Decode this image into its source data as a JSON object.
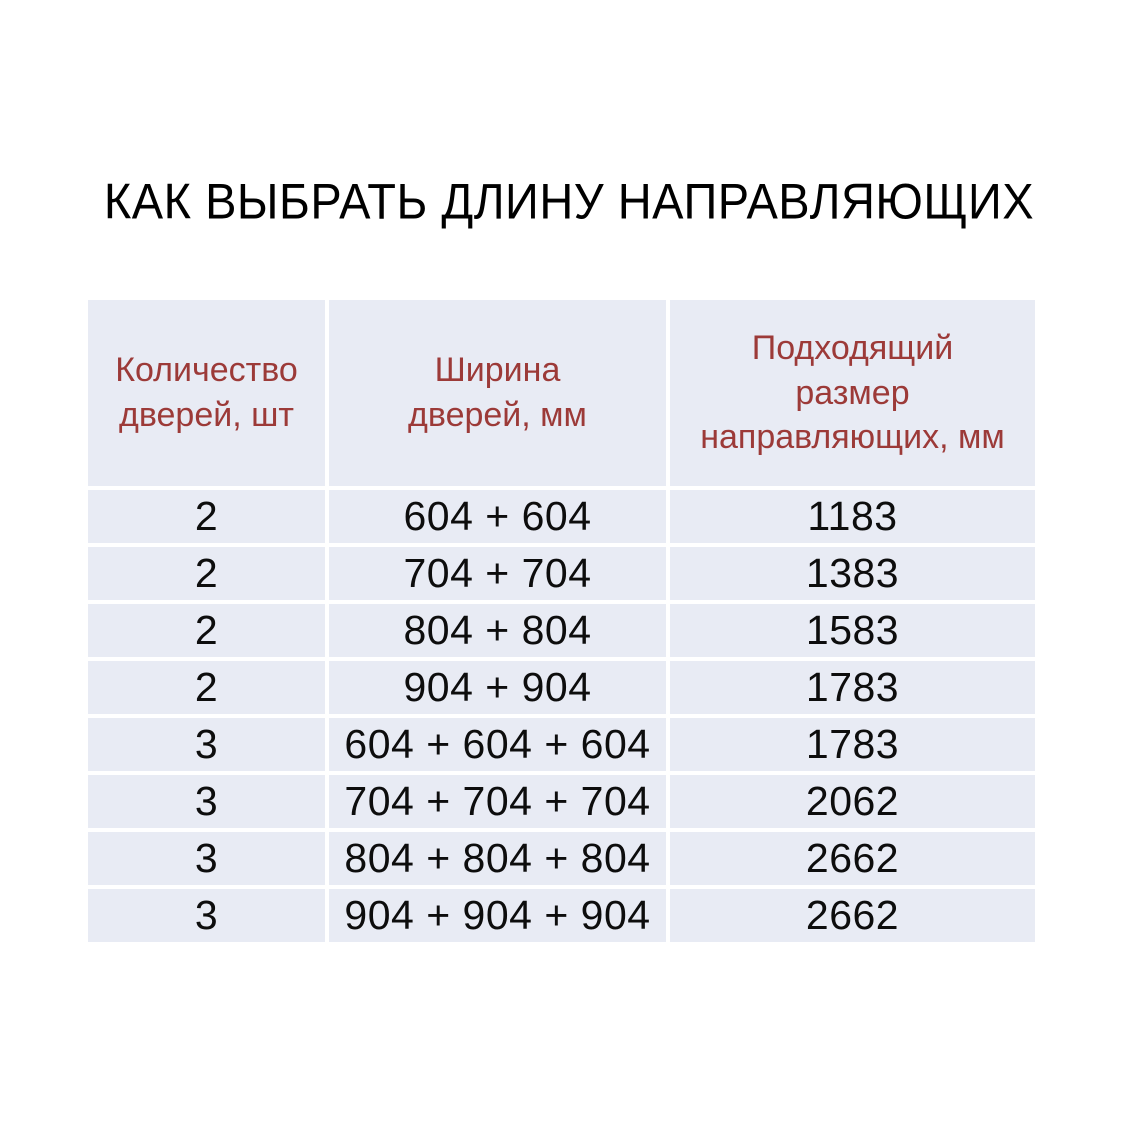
{
  "title": "КАК ВЫБРАТЬ ДЛИНУ НАПРАВЛЯЮЩИХ",
  "colors": {
    "page_bg": "#ffffff",
    "cell_bg": "#e8ebf4",
    "header_text": "#9c3a38",
    "body_text": "#0d0d0d",
    "title_text": "#000000"
  },
  "table": {
    "headers": [
      "Количество\nдверей, шт",
      "Ширина\nдверей, мм",
      "Подходящий\nразмер\nнаправляющих, мм"
    ],
    "rows": [
      [
        "2",
        "604 + 604",
        "1183"
      ],
      [
        "2",
        "704 + 704",
        "1383"
      ],
      [
        "2",
        "804 + 804",
        "1583"
      ],
      [
        "2",
        "904 + 904",
        "1783"
      ],
      [
        "3",
        "604 + 604 + 604",
        "1783"
      ],
      [
        "3",
        "704 + 704 + 704",
        "2062"
      ],
      [
        "3",
        "804 + 804 + 804",
        "2662"
      ],
      [
        "3",
        "904 + 904 + 904",
        "2662"
      ]
    ]
  }
}
